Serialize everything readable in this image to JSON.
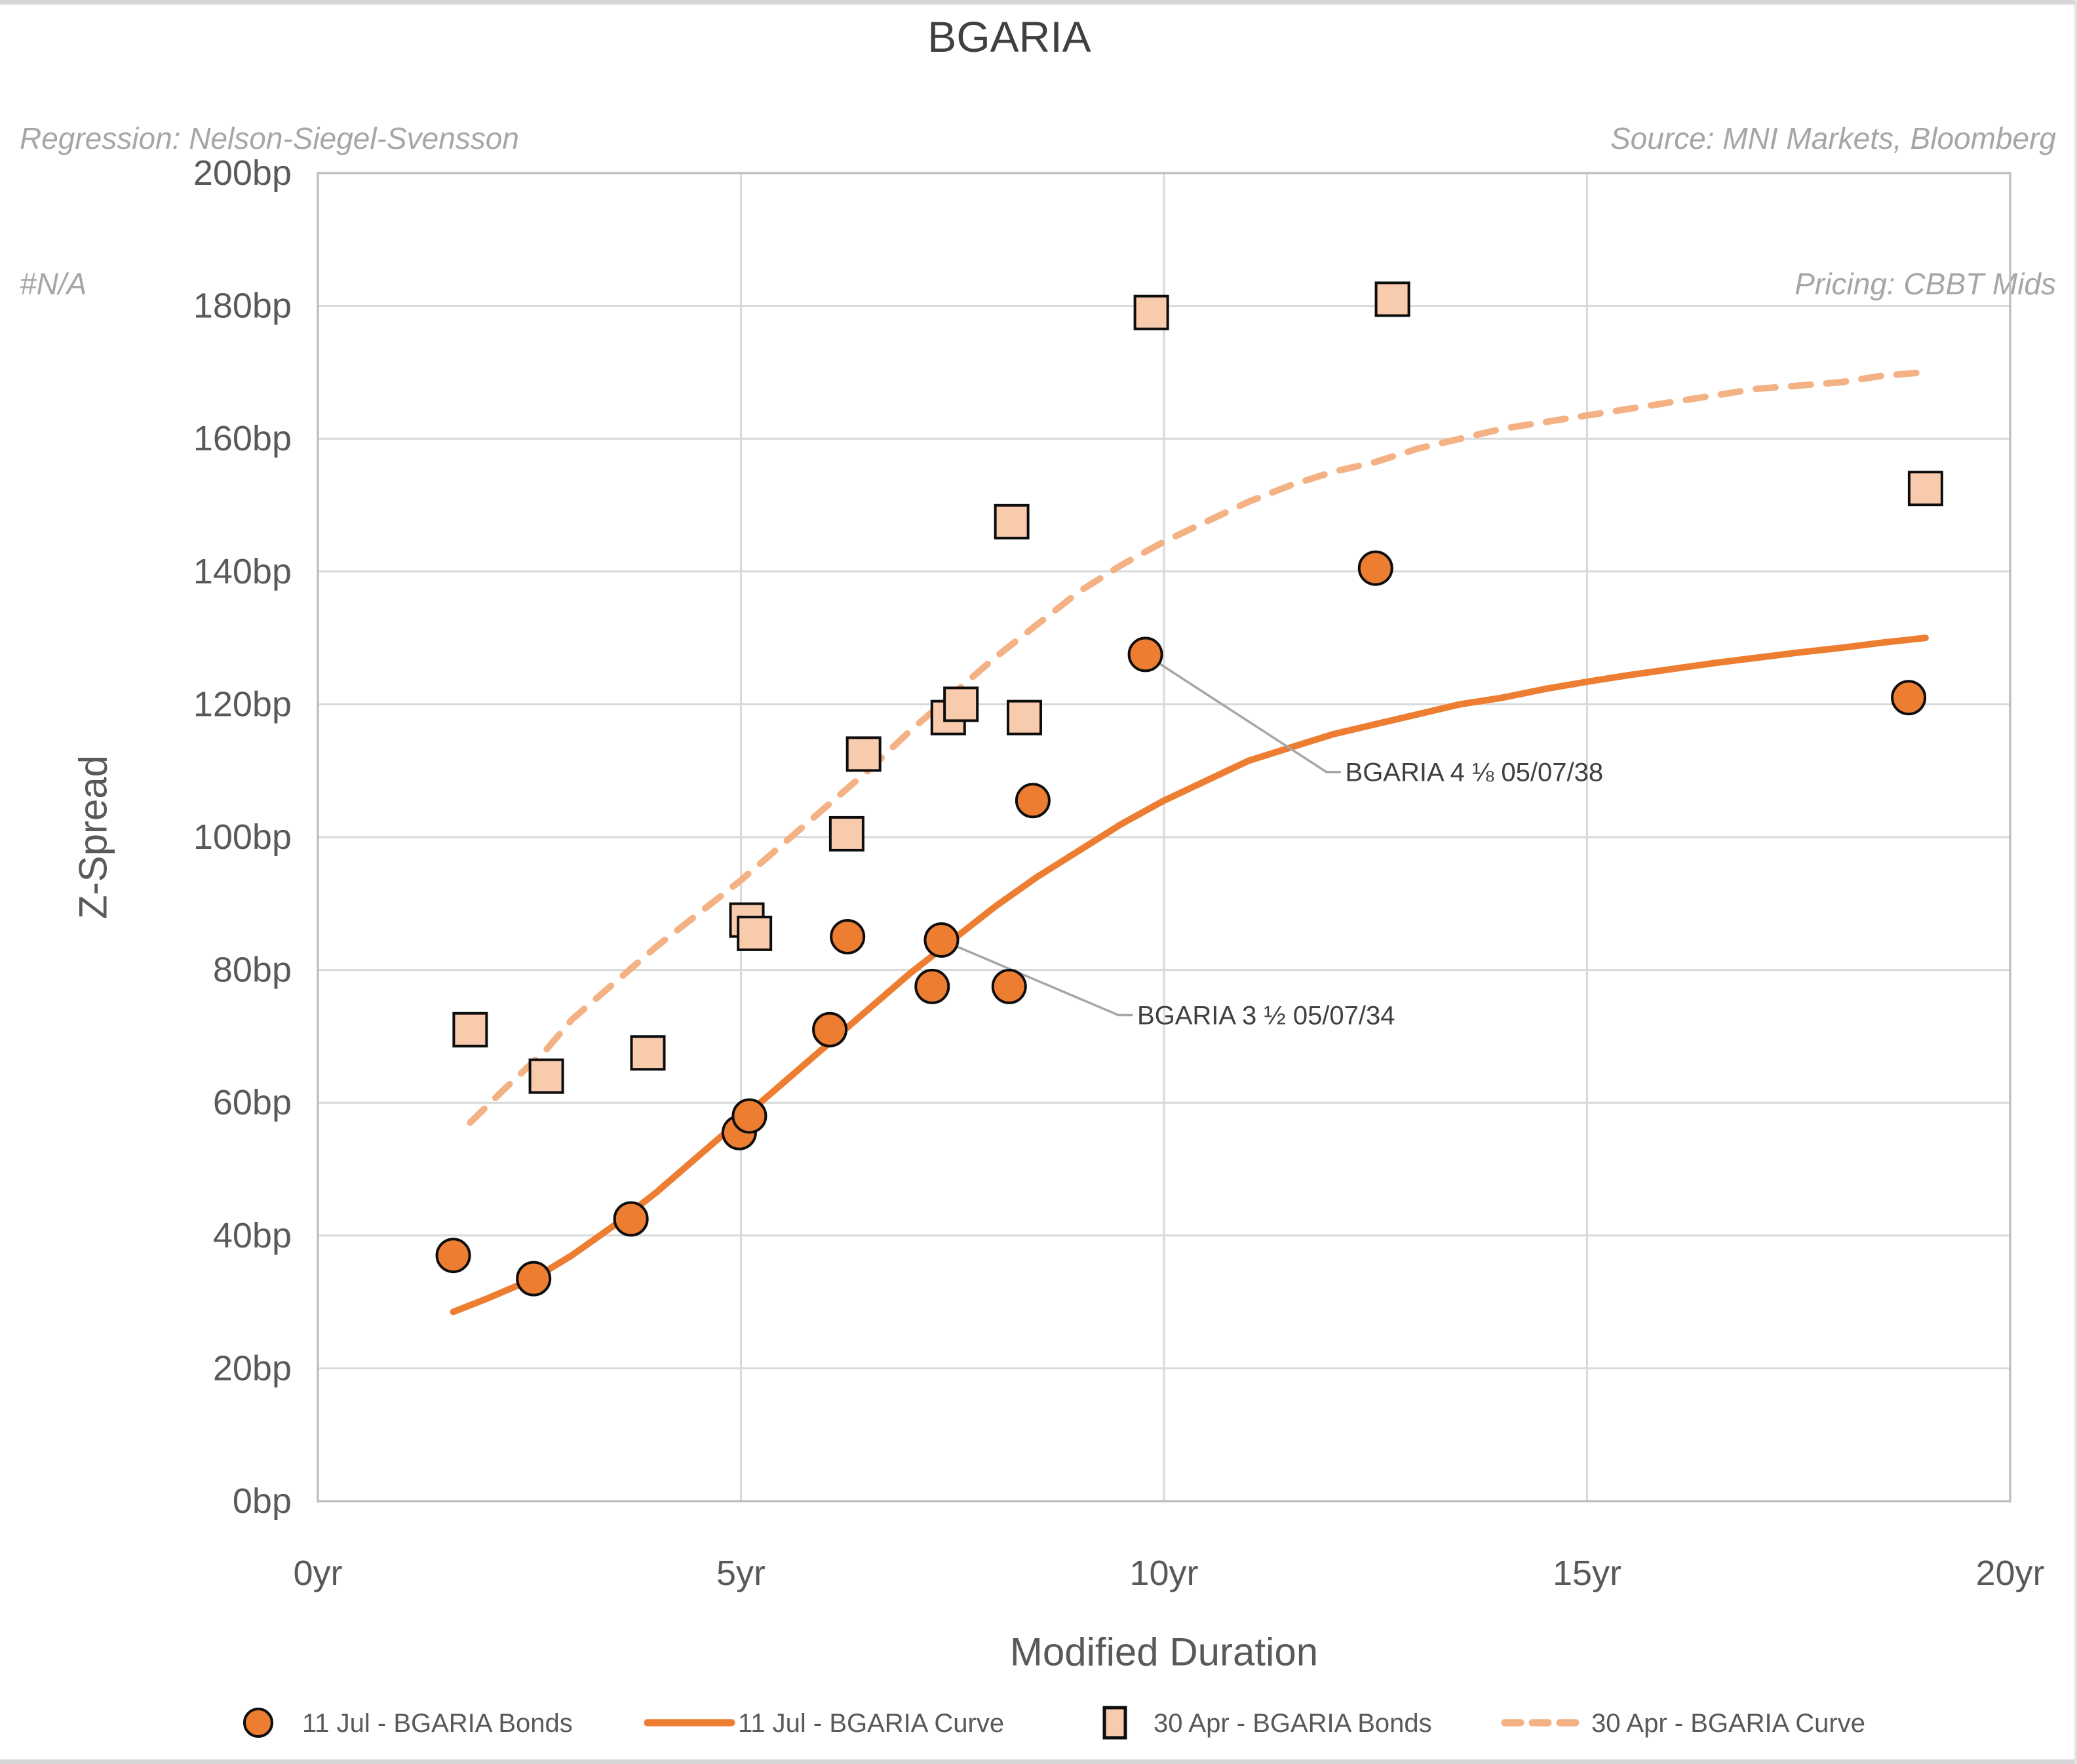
{
  "header": {
    "regression_line1": "Regression: Nelson-Siegel-Svensson",
    "regression_line2": "#N/A",
    "title": "BGARIA",
    "source_line1": "Source: MNI Markets, Bloomberg",
    "source_line2": "Pricing: CBBT Mids"
  },
  "colors": {
    "accent_orange": "#ED7D31",
    "light_square_fill": "#F8CBAD",
    "dashed_curve": "#F4B183",
    "marker_outline": "#0D0D0D",
    "gridline": "#D9D9D9",
    "plot_border": "#BFBFBF",
    "tick_text": "#595959",
    "title_text": "#404040",
    "note_text": "#A6A6A6",
    "leader_line": "#A6A6A6",
    "annotation_text": "#404040"
  },
  "chart_data": {
    "type": "scatter",
    "title": "BGARIA",
    "xlabel": "Modified Duration",
    "ylabel": "Z-Spread",
    "xlim": [
      0,
      20
    ],
    "ylim": [
      0,
      200
    ],
    "grid": true,
    "legend_position": "bottom",
    "x_ticks": [
      {
        "v": 0,
        "label": "0yr"
      },
      {
        "v": 5,
        "label": "5yr"
      },
      {
        "v": 10,
        "label": "10yr"
      },
      {
        "v": 15,
        "label": "15yr"
      },
      {
        "v": 20,
        "label": "20yr"
      }
    ],
    "y_ticks": [
      {
        "v": 0,
        "label": "0bp"
      },
      {
        "v": 20,
        "label": "20bp"
      },
      {
        "v": 40,
        "label": "40bp"
      },
      {
        "v": 60,
        "label": "60bp"
      },
      {
        "v": 80,
        "label": "80bp"
      },
      {
        "v": 100,
        "label": "100bp"
      },
      {
        "v": 120,
        "label": "120bp"
      },
      {
        "v": 140,
        "label": "140bp"
      },
      {
        "v": 160,
        "label": "160bp"
      },
      {
        "v": 180,
        "label": "180bp"
      },
      {
        "v": 200,
        "label": "200bp"
      }
    ],
    "series": [
      {
        "name": "11 Jul - BGARIA  Bonds",
        "kind": "scatter",
        "marker": "circle",
        "fill": "#ED7D31",
        "outline": "#0D0D0D",
        "points": [
          [
            1.6,
            37.0
          ],
          [
            2.55,
            33.5
          ],
          [
            3.7,
            42.5
          ],
          [
            4.98,
            55.5
          ],
          [
            5.1,
            58.0
          ],
          [
            6.05,
            71.0
          ],
          [
            6.26,
            85.0
          ],
          [
            7.26,
            77.5
          ],
          [
            7.37,
            84.5
          ],
          [
            8.17,
            77.5
          ],
          [
            8.45,
            105.5
          ],
          [
            9.78,
            127.5
          ],
          [
            12.5,
            140.5
          ],
          [
            18.8,
            121.0
          ]
        ]
      },
      {
        "name": "11 Jul - BGARIA  Curve",
        "kind": "line",
        "style": "solid",
        "color": "#ED7D31",
        "points": [
          [
            1.6,
            28.5
          ],
          [
            2.0,
            30.5
          ],
          [
            2.55,
            33.5
          ],
          [
            3.0,
            37.0
          ],
          [
            3.5,
            41.5
          ],
          [
            4.0,
            46.5
          ],
          [
            4.5,
            52.0
          ],
          [
            5.0,
            57.5
          ],
          [
            5.5,
            63.0
          ],
          [
            6.0,
            68.5
          ],
          [
            6.5,
            74.0
          ],
          [
            7.0,
            79.5
          ],
          [
            7.5,
            84.5
          ],
          [
            8.0,
            89.5
          ],
          [
            8.5,
            94.0
          ],
          [
            9.0,
            98.0
          ],
          [
            9.5,
            102.0
          ],
          [
            10.0,
            105.5
          ],
          [
            10.5,
            108.5
          ],
          [
            11.0,
            111.5
          ],
          [
            11.5,
            113.5
          ],
          [
            12.0,
            115.5
          ],
          [
            12.5,
            117.0
          ],
          [
            13.0,
            118.5
          ],
          [
            13.5,
            120.0
          ],
          [
            14.0,
            121.0
          ],
          [
            14.5,
            122.3
          ],
          [
            15.0,
            123.4
          ],
          [
            15.5,
            124.4
          ],
          [
            16.0,
            125.3
          ],
          [
            16.5,
            126.2
          ],
          [
            17.0,
            127.0
          ],
          [
            17.5,
            127.8
          ],
          [
            18.0,
            128.5
          ],
          [
            18.5,
            129.3
          ],
          [
            19.0,
            130.0
          ]
        ]
      },
      {
        "name": "30 Apr - BGARIA Bonds",
        "kind": "scatter",
        "marker": "square",
        "fill": "#F8CBAD",
        "outline": "#0D0D0D",
        "points": [
          [
            1.8,
            71.0
          ],
          [
            2.7,
            64.0
          ],
          [
            3.9,
            67.5
          ],
          [
            5.07,
            87.5
          ],
          [
            5.16,
            85.5
          ],
          [
            6.25,
            100.5
          ],
          [
            6.45,
            112.5
          ],
          [
            7.45,
            118.0
          ],
          [
            7.6,
            120.0
          ],
          [
            8.2,
            147.5
          ],
          [
            8.35,
            118.0
          ],
          [
            9.85,
            179.0
          ],
          [
            12.7,
            181.0
          ],
          [
            19.0,
            152.5
          ]
        ]
      },
      {
        "name": "30 Apr - BGARIA Curve",
        "kind": "line",
        "style": "dashed",
        "color": "#F4B183",
        "points": [
          [
            1.8,
            57.0
          ],
          [
            2.2,
            62.0
          ],
          [
            2.7,
            68.0
          ],
          [
            3.0,
            72.5
          ],
          [
            3.5,
            78.0
          ],
          [
            4.0,
            83.5
          ],
          [
            4.5,
            88.5
          ],
          [
            5.0,
            93.5
          ],
          [
            5.5,
            99.0
          ],
          [
            6.0,
            104.5
          ],
          [
            6.5,
            110.0
          ],
          [
            7.0,
            116.0
          ],
          [
            7.5,
            121.5
          ],
          [
            8.0,
            127.0
          ],
          [
            8.5,
            132.0
          ],
          [
            9.0,
            137.0
          ],
          [
            9.5,
            141.0
          ],
          [
            10.0,
            144.5
          ],
          [
            10.5,
            147.5
          ],
          [
            11.0,
            150.5
          ],
          [
            11.5,
            153.0
          ],
          [
            12.0,
            155.0
          ],
          [
            12.5,
            156.5
          ],
          [
            13.0,
            158.5
          ],
          [
            13.5,
            160.0
          ],
          [
            14.0,
            161.5
          ],
          [
            14.5,
            162.5
          ],
          [
            15.0,
            163.5
          ],
          [
            15.5,
            164.5
          ],
          [
            16.0,
            165.5
          ],
          [
            16.5,
            166.5
          ],
          [
            17.0,
            167.5
          ],
          [
            17.5,
            168.0
          ],
          [
            18.0,
            168.5
          ],
          [
            18.5,
            169.5
          ],
          [
            19.0,
            170.0
          ]
        ]
      }
    ],
    "annotations": [
      {
        "text": "BGARIA 4 ⅛ 05/07/38",
        "point": [
          9.78,
          127.5
        ],
        "elbow": [
          11.92,
          109.8
        ],
        "text_at": [
          12.08,
          109.8
        ]
      },
      {
        "text": "BGARIA 3 ½ 05/07/34",
        "point": [
          7.37,
          84.5
        ],
        "elbow": [
          9.46,
          73.2
        ],
        "text_at": [
          9.62,
          73.2
        ]
      }
    ]
  }
}
